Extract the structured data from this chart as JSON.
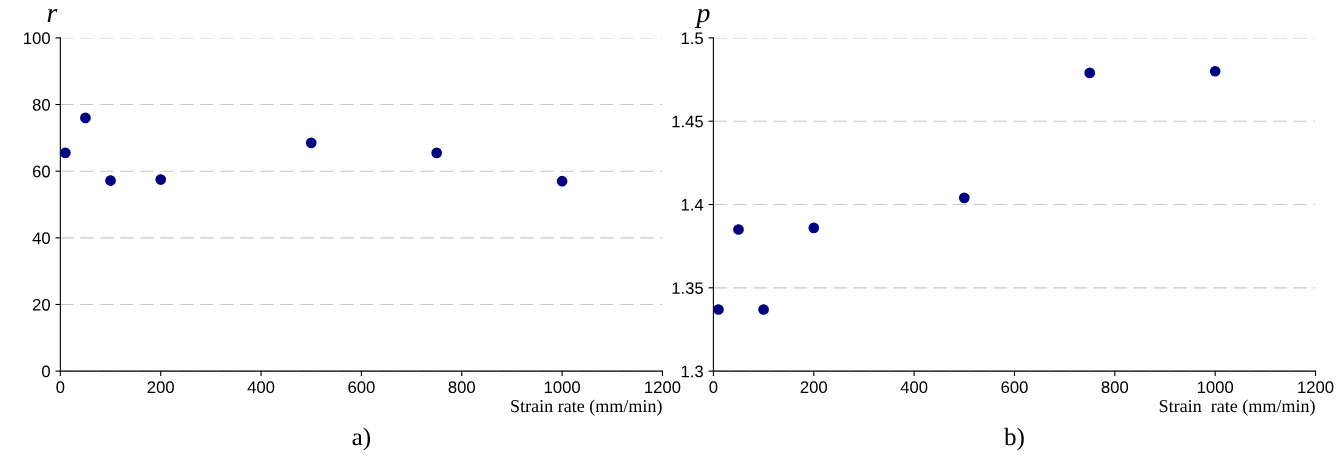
{
  "chart_data": [
    {
      "type": "scatter",
      "ylabel": "r",
      "xlabel": "Strain rate (mm/min)",
      "annotations": [
        "a)"
      ],
      "x": [
        10,
        50,
        100,
        200,
        500,
        750,
        1000
      ],
      "series": [
        {
          "color": "#000080",
          "values": [
            65.5,
            76,
            57.2,
            57.5,
            68.5,
            65.5,
            57
          ]
        }
      ],
      "xlim": [
        0,
        1200
      ],
      "xticks": [
        0,
        200,
        400,
        600,
        800,
        1000,
        1200
      ],
      "ylim": [
        0,
        100
      ],
      "yticks": [
        0,
        20,
        40,
        60,
        80,
        100
      ],
      "grid": "y",
      "marker": "circle",
      "legend": false
    },
    {
      "type": "scatter",
      "ylabel": "p",
      "xlabel": "Strain  rate (mm/min)",
      "annotations": [
        "b)"
      ],
      "x": [
        10,
        50,
        100,
        200,
        500,
        750,
        1000
      ],
      "series": [
        {
          "color": "#000080",
          "values": [
            1.337,
            1.385,
            1.337,
            1.386,
            1.404,
            1.479,
            1.48
          ]
        }
      ],
      "xlim": [
        0,
        1200
      ],
      "xticks": [
        0,
        200,
        400,
        600,
        800,
        1000,
        1200
      ],
      "ylim": [
        1.3,
        1.5
      ],
      "yticks": [
        1.3,
        1.35,
        1.4,
        1.45,
        1.5
      ],
      "grid": "y",
      "marker": "circle",
      "legend": false
    }
  ]
}
